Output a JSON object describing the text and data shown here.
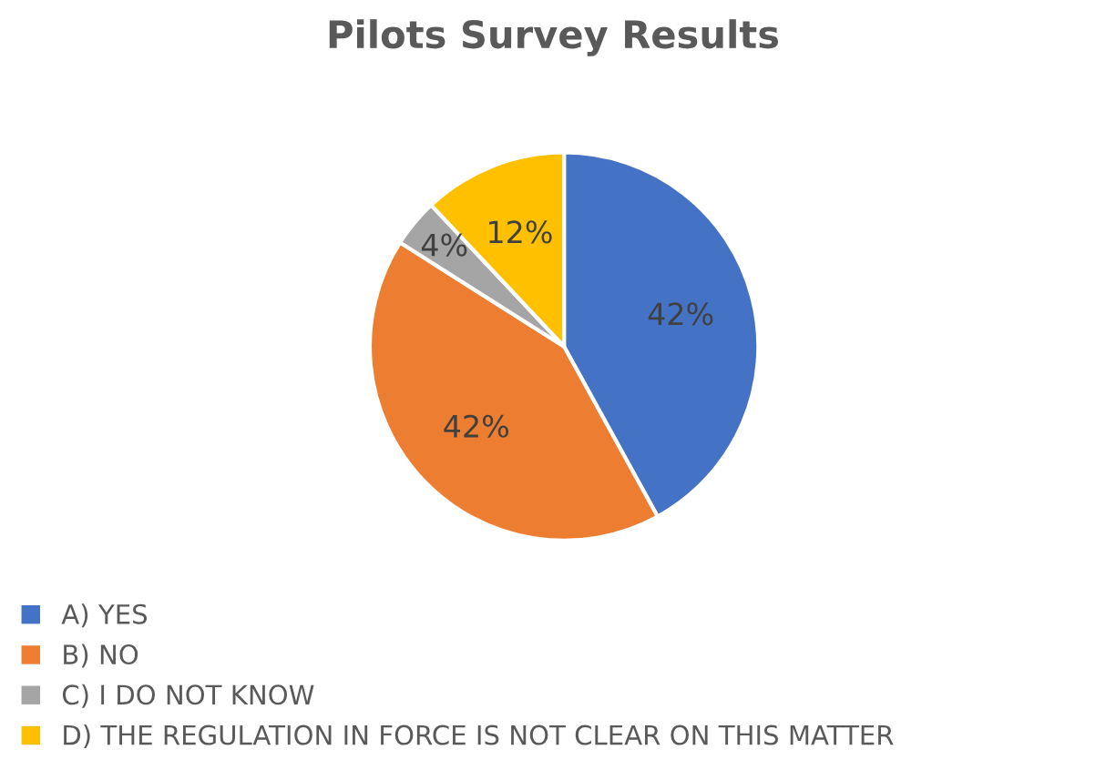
{
  "chart_data": {
    "type": "pie",
    "title": "Pilots Survey Results",
    "categories": [
      "A) YES",
      "B) NO",
      "C) I DO NOT KNOW",
      "D) THE REGULATION IN FORCE IS NOT CLEAR ON THIS MATTER"
    ],
    "values": [
      42,
      42,
      4,
      12
    ],
    "value_labels": [
      "42%",
      "42%",
      "4%",
      "12%"
    ],
    "colors": [
      "#4472c4",
      "#ed7d31",
      "#a5a5a5",
      "#ffc000"
    ],
    "legend": "bottom left"
  }
}
